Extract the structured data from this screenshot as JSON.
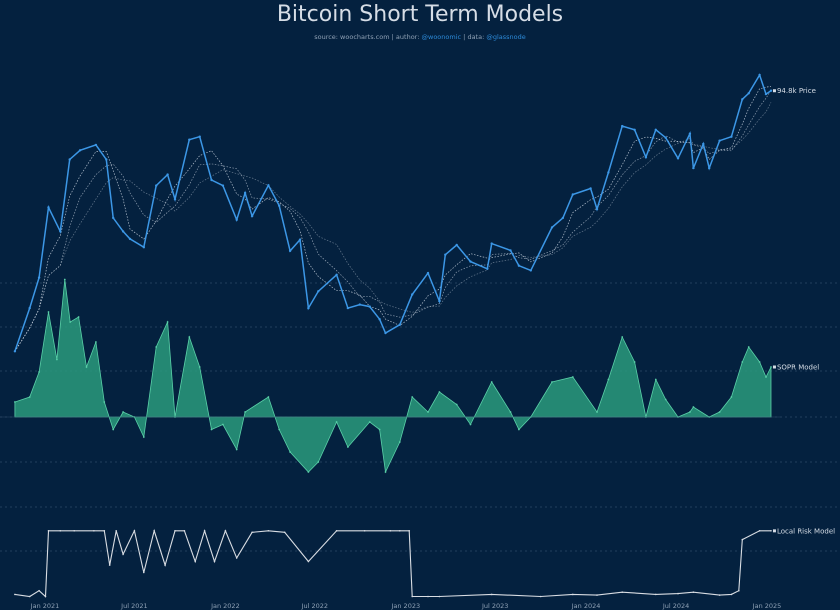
{
  "title": "Bitcoin Short Term Models",
  "subtitle": {
    "source_label": "source: woocharts.com",
    "sep1": "|",
    "author_label": "author:",
    "author_value": "@woonomic",
    "sep2": "|",
    "data_label": "data:",
    "data_value": "@glassnode"
  },
  "colors": {
    "background": "#04213f",
    "price": "#3c97e6",
    "ma": "#c8d2de",
    "sopr_fill": "#2a9a7c",
    "sopr_stroke": "#5ad0a8",
    "risk": "#d9dde3",
    "gridline": "#2d4a68",
    "text": "#d6dde6"
  },
  "chart_data": [
    {
      "type": "line",
      "name": "price-panel",
      "series": [
        {
          "name": "94.8k Price",
          "x": [
            "2020-11-01",
            "2020-12-01",
            "2020-12-20",
            "2021-01-08",
            "2021-02-01",
            "2021-02-20",
            "2021-03-13",
            "2021-04-14",
            "2021-05-05",
            "2021-05-19",
            "2021-06-08",
            "2021-06-22",
            "2021-07-20",
            "2021-08-14",
            "2021-09-06",
            "2021-09-21",
            "2021-10-20",
            "2021-11-10",
            "2021-12-04",
            "2021-12-27",
            "2022-01-24",
            "2022-02-10",
            "2022-02-24",
            "2022-03-29",
            "2022-04-20",
            "2022-05-12",
            "2022-06-01",
            "2022-06-18",
            "2022-07-08",
            "2022-08-14",
            "2022-09-06",
            "2022-09-30",
            "2022-10-20",
            "2022-11-09",
            "2022-11-21",
            "2022-12-20",
            "2023-01-14",
            "2023-02-15",
            "2023-03-10",
            "2023-03-22",
            "2023-04-14",
            "2023-05-12",
            "2023-06-15",
            "2023-06-24",
            "2023-08-01",
            "2023-08-18",
            "2023-09-11",
            "2023-10-24",
            "2023-11-15",
            "2023-12-05",
            "2024-01-10",
            "2024-01-23",
            "2024-02-15",
            "2024-03-14",
            "2024-04-08",
            "2024-05-01",
            "2024-05-21",
            "2024-06-10",
            "2024-07-05",
            "2024-07-29",
            "2024-08-05",
            "2024-08-25",
            "2024-09-06",
            "2024-09-27",
            "2024-10-21",
            "2024-11-12",
            "2024-11-25",
            "2024-12-17",
            "2024-12-30",
            "2025-01-09"
          ],
          "values": [
            13800,
            19000,
            23800,
            40000,
            33500,
            57000,
            61000,
            63500,
            57000,
            37000,
            33500,
            31700,
            29800,
            47000,
            51000,
            42500,
            66000,
            67500,
            49000,
            47000,
            36500,
            44500,
            37500,
            47100,
            40500,
            29000,
            31500,
            19000,
            21500,
            24300,
            19000,
            19500,
            19200,
            17500,
            15800,
            16800,
            21000,
            24600,
            20000,
            28200,
            30300,
            26800,
            25400,
            30600,
            29100,
            26000,
            25100,
            34500,
            37000,
            44000,
            46000,
            39500,
            51800,
            73000,
            71000,
            58000,
            71000,
            67000,
            57500,
            69000,
            53500,
            64000,
            53500,
            65500,
            67500,
            89000,
            93000,
            106500,
            92500,
            94800
          ]
        }
      ]
    },
    {
      "type": "area",
      "name": "sopr-panel",
      "series": [
        {
          "name": "SOPR Model",
          "x": [
            "2020-11-01",
            "2020-12-01",
            "2020-12-20",
            "2021-01-08",
            "2021-01-25",
            "2021-02-10",
            "2021-02-21",
            "2021-03-10",
            "2021-03-26",
            "2021-04-14",
            "2021-05-01",
            "2021-05-19",
            "2021-06-08",
            "2021-07-01",
            "2021-07-20",
            "2021-08-14",
            "2021-09-06",
            "2021-09-21",
            "2021-10-20",
            "2021-11-10",
            "2021-12-04",
            "2021-12-27",
            "2022-01-24",
            "2022-02-10",
            "2022-03-29",
            "2022-04-20",
            "2022-05-12",
            "2022-06-18",
            "2022-07-08",
            "2022-08-14",
            "2022-09-06",
            "2022-10-20",
            "2022-11-09",
            "2022-11-21",
            "2022-12-20",
            "2023-01-14",
            "2023-02-15",
            "2023-03-10",
            "2023-04-14",
            "2023-05-12",
            "2023-06-24",
            "2023-08-01",
            "2023-08-18",
            "2023-09-11",
            "2023-10-24",
            "2023-12-05",
            "2024-01-23",
            "2024-02-15",
            "2024-03-14",
            "2024-04-08",
            "2024-05-01",
            "2024-05-21",
            "2024-06-10",
            "2024-07-05",
            "2024-07-29",
            "2024-08-05",
            "2024-09-06",
            "2024-09-27",
            "2024-10-21",
            "2024-11-12",
            "2024-11-25",
            "2024-12-17",
            "2024-12-30",
            "2025-01-09"
          ],
          "values": [
            0.06,
            0.08,
            0.18,
            0.42,
            0.23,
            0.55,
            0.38,
            0.4,
            0.2,
            0.3,
            0.06,
            -0.05,
            0.02,
            0.0,
            -0.08,
            0.28,
            0.38,
            0.0,
            0.32,
            0.2,
            -0.05,
            -0.03,
            -0.13,
            0.02,
            0.08,
            -0.05,
            -0.14,
            -0.22,
            -0.18,
            -0.02,
            -0.12,
            -0.02,
            -0.05,
            -0.22,
            -0.1,
            0.08,
            0.02,
            0.1,
            0.05,
            -0.03,
            0.14,
            0.02,
            -0.05,
            0.0,
            0.14,
            0.16,
            0.02,
            0.15,
            0.32,
            0.22,
            0.0,
            0.15,
            0.07,
            0.0,
            0.02,
            0.04,
            0.0,
            0.02,
            0.08,
            0.22,
            0.28,
            0.22,
            0.16,
            0.2
          ]
        }
      ]
    },
    {
      "type": "line",
      "name": "risk-panel",
      "series": [
        {
          "name": "Local Risk Model",
          "x": [
            "2020-11-01",
            "2020-12-01",
            "2020-12-20",
            "2021-01-02",
            "2021-01-08",
            "2021-02-01",
            "2021-03-01",
            "2021-04-10",
            "2021-05-01",
            "2021-05-12",
            "2021-05-25",
            "2021-06-08",
            "2021-07-01",
            "2021-07-20",
            "2021-08-10",
            "2021-09-01",
            "2021-09-21",
            "2021-10-10",
            "2021-11-01",
            "2021-11-20",
            "2021-12-10",
            "2022-01-01",
            "2022-01-24",
            "2022-02-24",
            "2022-03-29",
            "2022-05-01",
            "2022-06-18",
            "2022-08-14",
            "2022-10-10",
            "2022-12-01",
            "2022-12-20",
            "2023-01-08",
            "2023-01-14",
            "2023-02-15",
            "2023-03-10",
            "2023-06-24",
            "2023-10-01",
            "2023-12-05",
            "2024-01-23",
            "2024-03-14",
            "2024-05-21",
            "2024-07-05",
            "2024-08-05",
            "2024-09-27",
            "2024-10-21",
            "2024-11-05",
            "2024-11-12",
            "2024-12-17",
            "2025-01-09"
          ],
          "values": [
            0.05,
            0.02,
            0.1,
            0.02,
            0.92,
            0.92,
            0.92,
            0.92,
            0.92,
            0.45,
            0.92,
            0.6,
            0.92,
            0.35,
            0.92,
            0.45,
            0.92,
            0.92,
            0.5,
            0.92,
            0.5,
            0.92,
            0.55,
            0.9,
            0.92,
            0.9,
            0.5,
            0.92,
            0.92,
            0.92,
            0.92,
            0.92,
            0.02,
            0.02,
            0.02,
            0.05,
            0.02,
            0.05,
            0.04,
            0.08,
            0.05,
            0.06,
            0.08,
            0.04,
            0.05,
            0.1,
            0.8,
            0.92,
            0.92
          ]
        }
      ]
    }
  ],
  "x_axis": {
    "ticks": [
      {
        "date": "2021-01-01",
        "label": "Jan 2021"
      },
      {
        "date": "2021-07-01",
        "label": "Jul 2021"
      },
      {
        "date": "2022-01-01",
        "label": "Jan 2022"
      },
      {
        "date": "2022-07-01",
        "label": "Jul 2022"
      },
      {
        "date": "2023-01-01",
        "label": "Jan 2023"
      },
      {
        "date": "2023-07-01",
        "label": "Jul 2023"
      },
      {
        "date": "2024-01-01",
        "label": "Jan 2024"
      },
      {
        "date": "2024-07-01",
        "label": "Jul 2024"
      },
      {
        "date": "2025-01-01",
        "label": "Jan 2025"
      }
    ]
  },
  "price_scale": "log",
  "grid": "horizontal dashed",
  "legend": "inline labels at right end of each series"
}
